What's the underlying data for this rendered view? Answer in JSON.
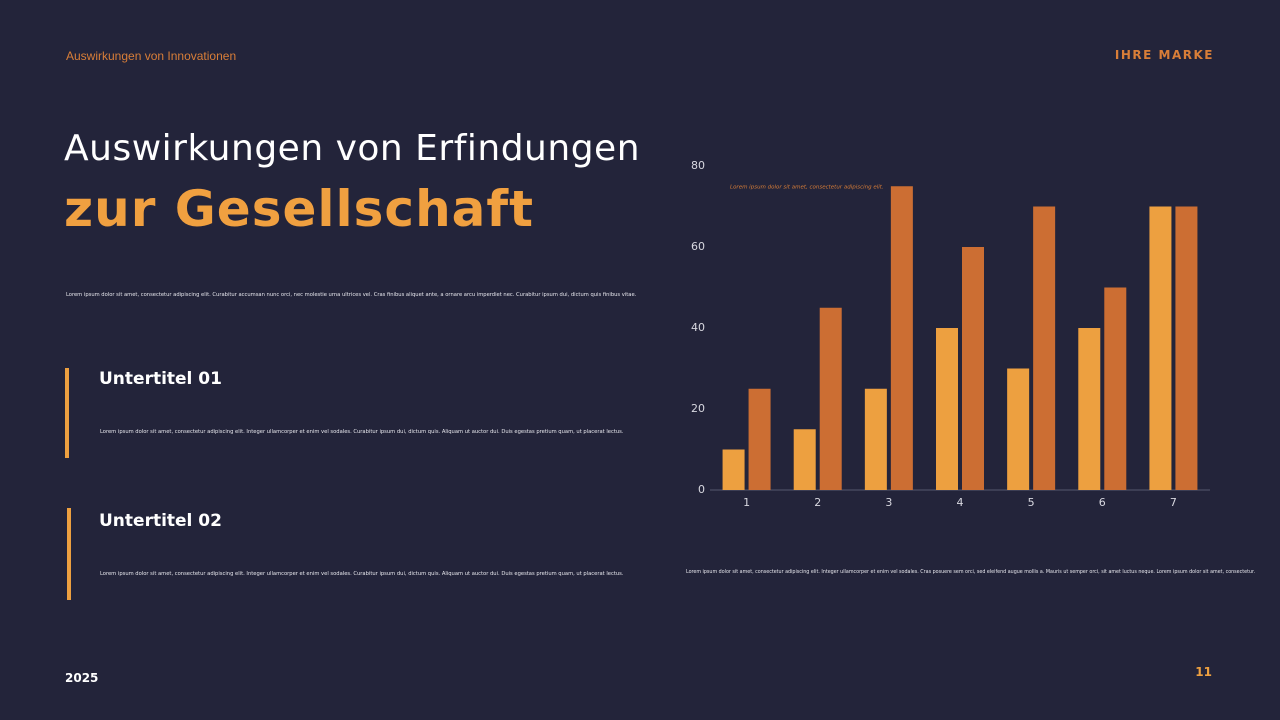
{
  "header": {
    "topic": "Auswirkungen von Innovationen",
    "brand": "IHRE MARKE"
  },
  "title": {
    "line1": "Auswirkungen von Erfindungen",
    "line2": "zur Gesellschaft"
  },
  "intro": "Lorem ipsum dolor sit amet, consectetur adipiscing elit. Curabitur accumsan nunc orci, nec molestie urna ultrices vel. Cras finibus aliquet ante, a ornare arcu imperdiet nec.  Curabitur ipsum dui, dictum quis finibus vitae.",
  "sections": [
    {
      "heading": "Untertitel 01",
      "text": "Lorem ipsum dolor sit amet, consectetur adipiscing elit. Integer ullamcorper et enim vel sodales.  Curabitur ipsum dui, dictum quis. Aliquam ut auctor dui. Duis egestas pretium quam, ut placerat lectus."
    },
    {
      "heading": "Untertitel 02",
      "text": "Lorem ipsum dolor sit amet, consectetur adipiscing elit. Integer ullamcorper et enim vel sodales.  Curabitur ipsum dui, dictum quis. Aliquam ut auctor dui. Duis egestas pretium quam, ut placerat lectus."
    }
  ],
  "chart_data": {
    "type": "bar",
    "annotation": "Lorem ipsum dolor sit amet, consectetur adipiscing elit.",
    "categories": [
      "1",
      "2",
      "3",
      "4",
      "5",
      "6",
      "7"
    ],
    "series": [
      {
        "color": "#eda040",
        "values": [
          10,
          15,
          25,
          40,
          30,
          40,
          70
        ]
      },
      {
        "color": "#cc6e33",
        "values": [
          25,
          45,
          75,
          60,
          70,
          50,
          70
        ]
      }
    ],
    "ylim": [
      0,
      80
    ],
    "yticks": [
      0,
      20,
      40,
      60,
      80
    ],
    "grid": false
  },
  "caption": "Lorem ipsum dolor sit amet, consectetur adipiscing elit. Integer ullamcorper et enim vel sodales. Cras posuere sem orci, sed eleifend augue mollis a. Mauris ut semper orci, sit amet luctus neque. Lorem ipsum dolor sit amet, consectetur.",
  "footer": {
    "year": "2025",
    "page": "11"
  }
}
